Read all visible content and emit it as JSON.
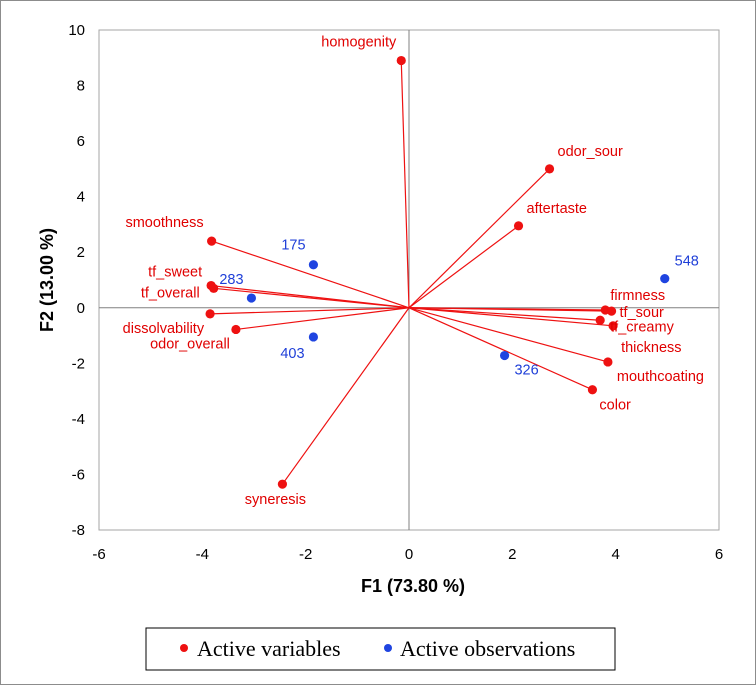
{
  "chart_data": {
    "type": "scatter",
    "subtype": "pca-biplot",
    "title": "",
    "xlabel": "F1 (73.80 %)",
    "ylabel": "F2 (13.00 %)",
    "xlim": [
      -6,
      6
    ],
    "ylim": [
      -8,
      10
    ],
    "xticks": [
      -6,
      -4,
      -2,
      0,
      2,
      4,
      6
    ],
    "yticks": [
      -8,
      -6,
      -4,
      -2,
      0,
      2,
      4,
      6,
      8,
      10
    ],
    "grid": false,
    "legend_position": "bottom",
    "colors": {
      "variables": "#ee1111",
      "observations": "#1f44e0",
      "axis_line": "#808080"
    },
    "series": [
      {
        "name": "Active variables",
        "color": "#ee1111",
        "arrows_from_origin": true,
        "points": [
          {
            "label": "homogenity",
            "x": -0.15,
            "y": 8.9
          },
          {
            "label": "odor_sour",
            "x": 2.72,
            "y": 5.0
          },
          {
            "label": "aftertaste",
            "x": 2.12,
            "y": 2.95
          },
          {
            "label": "smoothness",
            "x": -3.82,
            "y": 2.4
          },
          {
            "label": "tf_sweet",
            "x": -3.83,
            "y": 0.8
          },
          {
            "label": "tf_overall",
            "x": -3.78,
            "y": 0.7
          },
          {
            "label": "dissolvability",
            "x": -3.85,
            "y": -0.22
          },
          {
            "label": "odor_overall",
            "x": -3.35,
            "y": -0.78
          },
          {
            "label": "syneresis",
            "x": -2.45,
            "y": -6.35
          },
          {
            "label": "firmness",
            "x": 3.8,
            "y": -0.08
          },
          {
            "label": "tf_sour",
            "x": 3.92,
            "y": -0.12
          },
          {
            "label": "tf_creamy",
            "x": 3.7,
            "y": -0.45
          },
          {
            "label": "thickness",
            "x": 3.95,
            "y": -0.65
          },
          {
            "label": "mouthcoating",
            "x": 3.85,
            "y": -1.95
          },
          {
            "label": "color",
            "x": 3.55,
            "y": -2.95
          }
        ]
      },
      {
        "name": "Active observations",
        "color": "#1f44e0",
        "points": [
          {
            "label": "175",
            "x": -1.85,
            "y": 1.55
          },
          {
            "label": "283",
            "x": -3.05,
            "y": 0.35
          },
          {
            "label": "403",
            "x": -1.85,
            "y": -1.05
          },
          {
            "label": "548",
            "x": 4.95,
            "y": 1.05
          },
          {
            "label": "326",
            "x": 1.85,
            "y": -1.72
          }
        ]
      }
    ]
  }
}
